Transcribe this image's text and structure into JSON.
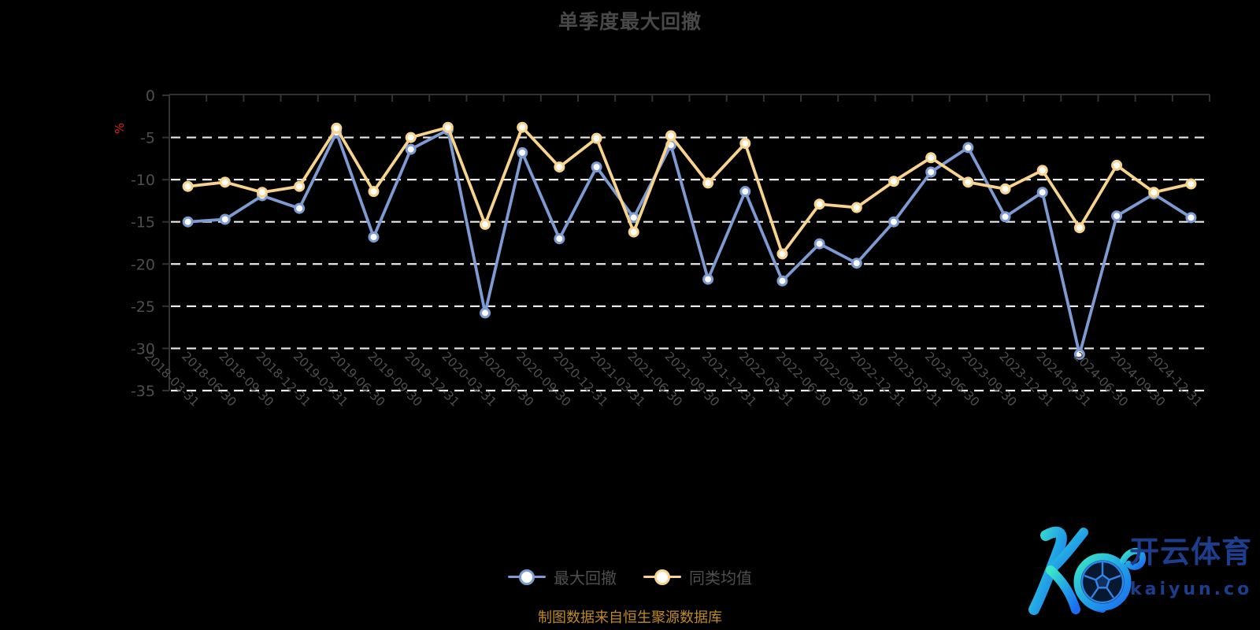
{
  "header": {
    "title": "单季度最大回撤"
  },
  "chart_data": {
    "type": "line",
    "title": "单季度最大回撤",
    "unit_label": "%",
    "categories": [
      "2018-03-31",
      "2018-06-30",
      "2018-09-30",
      "2018-12-31",
      "2019-03-31",
      "2019-06-30",
      "2019-09-30",
      "2019-12-31",
      "2020-03-31",
      "2020-06-30",
      "2020-09-30",
      "2020-12-31",
      "2021-03-31",
      "2021-06-30",
      "2021-09-30",
      "2021-12-31",
      "2022-03-31",
      "2022-06-30",
      "2022-09-30",
      "2022-12-31",
      "2023-03-31",
      "2023-06-30",
      "2023-09-30",
      "2023-12-31",
      "2024-03-31",
      "2024-06-30",
      "2024-09-30",
      "2024-12-31"
    ],
    "series": [
      {
        "name": "最大回撤",
        "color": "#7d9bd2",
        "values": [
          -15.0,
          -14.7,
          -11.9,
          -13.4,
          -4.4,
          -16.8,
          -6.4,
          -4.1,
          -25.8,
          -6.8,
          -17.0,
          -8.5,
          -14.5,
          -5.9,
          -21.8,
          -11.4,
          -22.0,
          -17.6,
          -19.9,
          -15.0,
          -9.1,
          -6.2,
          -14.4,
          -11.5,
          -30.7,
          -14.3,
          -11.7,
          -14.5
        ]
      },
      {
        "name": "同类均值",
        "color": "#f8d38e",
        "values": [
          -10.8,
          -10.3,
          -11.5,
          -10.8,
          -3.9,
          -11.4,
          -5.0,
          -3.8,
          -15.3,
          -3.8,
          -8.5,
          -5.1,
          -16.2,
          -4.8,
          -10.4,
          -5.7,
          -18.8,
          -12.9,
          -13.3,
          -10.2,
          -7.4,
          -10.3,
          -11.1,
          -8.9,
          -15.7,
          -8.3,
          -11.5,
          -10.5
        ]
      }
    ],
    "ylim": [
      -35,
      0
    ],
    "yticks": [
      0,
      -5,
      -10,
      -15,
      -20,
      -25,
      -30,
      -35
    ],
    "grid": "horizontal-white-dashed",
    "legend_position": "bottom-center",
    "marker": "white-filled-circle"
  },
  "legend": {
    "items": [
      {
        "label": "最大回撤",
        "color": "#7d9bd2"
      },
      {
        "label": "同类均值",
        "color": "#f8d38e"
      }
    ]
  },
  "footer": {
    "source_note": "制图数据来自恒生聚源数据库"
  },
  "logo": {
    "cn_name": "开云体育",
    "domain": "kaiyun.com"
  },
  "colors": {
    "background": "#000000",
    "title": "#484848",
    "axis": "#333333",
    "axis_label": "#4e4e4e",
    "grid": "#e9e9e9",
    "unit_label": "#e01f1f",
    "source_note": "#bf8b1e",
    "logo_text": "#1c3e8d",
    "series_blue": "#7d9bd2",
    "series_yellow": "#f8d38e"
  }
}
